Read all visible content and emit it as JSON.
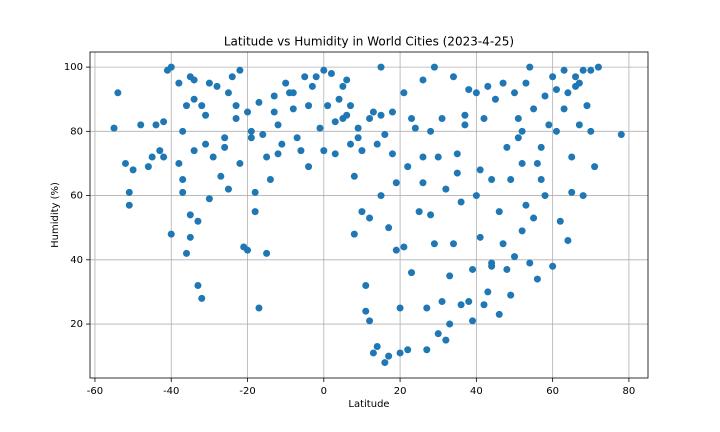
{
  "chart_data": {
    "type": "scatter",
    "title": "Latitude vs Humidity in World Cities (2023-4-25)",
    "x_label": "Latitude",
    "y_label": "Humidity (%)",
    "color": "#1f77b4",
    "grid": true,
    "xlim": [
      -61.3,
      85
    ],
    "ylim": [
      3.2,
      104.7
    ],
    "xticks": [
      -60,
      -40,
      -20,
      0,
      20,
      40,
      60,
      80
    ],
    "yticks": [
      20,
      40,
      60,
      80,
      100
    ],
    "x": [
      -55,
      -54,
      -52,
      -51,
      -51,
      -50,
      -48,
      -46,
      -45,
      -44,
      -43,
      -42,
      -42,
      -41,
      -40,
      -40,
      -38,
      -38,
      -37,
      -37,
      -36,
      -35,
      -35,
      -34,
      -34,
      -33,
      -33,
      -32,
      -32,
      -31,
      -30,
      -30,
      -29,
      -28,
      -27,
      -26,
      -25,
      -25,
      -24,
      -23,
      -22,
      -22,
      -21,
      -20,
      -20,
      -19,
      -18,
      -17,
      -17,
      -16,
      -15,
      -15,
      -14,
      -13,
      -12,
      -11,
      -10,
      -9,
      -8,
      -7,
      -6,
      -5,
      -4,
      -3,
      -2,
      -1,
      0,
      0,
      1,
      2,
      3,
      4,
      5,
      6,
      7,
      7,
      8,
      8,
      9,
      10,
      10,
      11,
      11,
      12,
      12,
      13,
      13,
      14,
      14,
      15,
      15,
      16,
      17,
      17,
      18,
      18,
      19,
      19,
      20,
      20,
      21,
      21,
      22,
      22,
      23,
      24,
      25,
      26,
      26,
      27,
      27,
      28,
      28,
      29,
      30,
      30,
      31,
      31,
      32,
      32,
      33,
      33,
      34,
      34,
      35,
      35,
      36,
      36,
      37,
      38,
      38,
      39,
      39,
      40,
      40,
      41,
      41,
      42,
      42,
      43,
      43,
      44,
      44,
      45,
      46,
      46,
      47,
      47,
      48,
      48,
      49,
      49,
      50,
      50,
      51,
      51,
      52,
      52,
      53,
      53,
      54,
      54,
      55,
      55,
      56,
      56,
      57,
      57,
      58,
      59,
      60,
      60,
      61,
      61,
      62,
      63,
      63,
      64,
      64,
      65,
      65,
      66,
      67,
      67,
      68,
      68,
      69,
      70,
      70,
      71,
      72,
      78,
      -37,
      -36,
      -35,
      -34,
      -31,
      -26,
      -23,
      -19,
      -18,
      -13,
      -8,
      -4,
      5,
      9,
      16,
      23,
      29,
      37,
      44,
      52,
      58,
      66,
      -12,
      3,
      6,
      12,
      15,
      26
    ],
    "y": [
      81,
      92,
      70,
      61,
      57,
      68,
      82,
      69,
      72,
      82,
      74,
      72,
      83,
      99,
      100,
      48,
      70,
      95,
      61,
      80,
      88,
      54,
      47,
      90,
      96,
      32,
      52,
      28,
      88,
      85,
      95,
      59,
      72,
      94,
      66,
      75,
      92,
      62,
      97,
      88,
      99,
      70,
      44,
      43,
      86,
      78,
      55,
      25,
      89,
      79,
      42,
      72,
      65,
      86,
      82,
      76,
      95,
      92,
      87,
      78,
      74,
      97,
      88,
      94,
      97,
      81,
      99,
      74,
      88,
      98,
      83,
      90,
      94,
      96,
      76,
      88,
      66,
      48,
      81,
      55,
      74,
      32,
      24,
      53,
      21,
      11,
      86,
      13,
      76,
      100,
      60,
      8,
      10,
      50,
      73,
      86,
      64,
      43,
      25,
      11,
      44,
      92,
      69,
      12,
      36,
      81,
      55,
      96,
      64,
      25,
      12,
      80,
      54,
      45,
      72,
      17,
      27,
      84,
      15,
      62,
      20,
      35,
      45,
      97,
      67,
      73,
      26,
      58,
      85,
      27,
      93,
      21,
      37,
      60,
      92,
      47,
      68,
      26,
      84,
      30,
      94,
      39,
      65,
      90,
      55,
      23,
      45,
      95,
      37,
      75,
      29,
      65,
      92,
      41,
      84,
      78,
      49,
      70,
      57,
      95,
      100,
      39,
      53,
      87,
      34,
      70,
      75,
      65,
      91,
      82,
      97,
      38,
      80,
      93,
      52,
      99,
      87,
      46,
      92,
      72,
      61,
      97,
      95,
      82,
      60,
      99,
      88,
      99,
      80,
      69,
      100,
      79,
      65,
      42,
      97,
      74,
      76,
      78,
      84,
      80,
      61,
      91,
      92,
      69,
      84,
      78,
      79,
      84,
      100,
      82,
      38,
      80,
      60,
      94,
      73,
      73,
      85,
      84,
      85,
      72
    ]
  }
}
